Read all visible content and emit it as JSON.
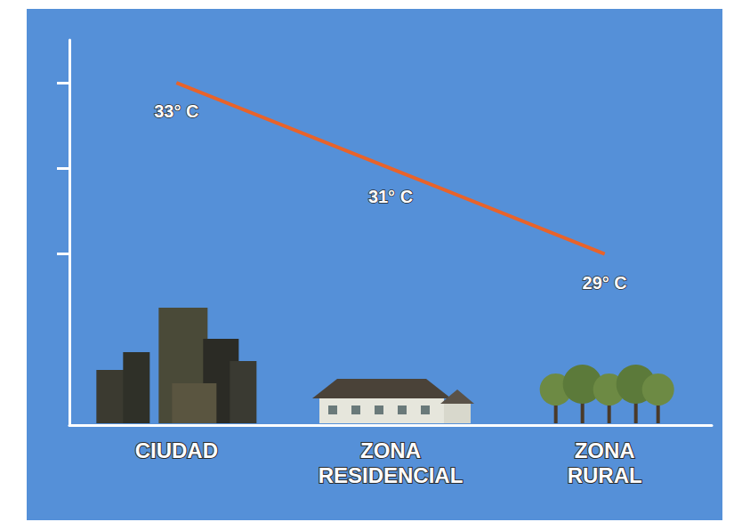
{
  "chart_data": {
    "type": "line",
    "categories": [
      "CIUDAD",
      "ZONA RESIDENCIAL",
      "ZONA RURAL"
    ],
    "values": [
      33,
      31,
      29
    ],
    "value_labels": [
      "33° C",
      "31° C",
      "29° C"
    ],
    "color": "#e8632a",
    "ylim": [
      25,
      34
    ],
    "yticks": [
      29,
      31,
      33
    ],
    "grid": false,
    "data_labels": true,
    "tick_labels": "x",
    "line_style": "smooth"
  }
}
